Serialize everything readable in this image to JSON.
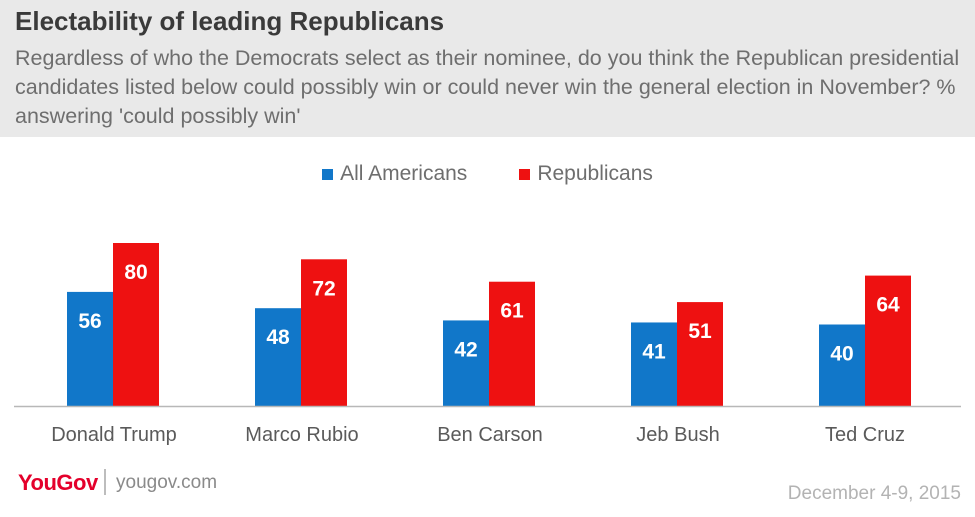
{
  "header": {
    "title": "Electability of leading Republicans",
    "subtitle": "Regardless of who the Democrats select as their nominee, do you think the Republican presidential candidates listed below could possibly win or could never win the general election in November? % answering 'could possibly win'"
  },
  "colors": {
    "all_americans": "#1177c9",
    "republicans": "#ee1111"
  },
  "chart_data": {
    "type": "bar",
    "categories": [
      "Donald Trump",
      "Marco Rubio",
      "Ben Carson",
      "Jeb Bush",
      "Ted Cruz"
    ],
    "series": [
      {
        "name": "All Americans",
        "values": [
          56,
          48,
          42,
          41,
          40
        ]
      },
      {
        "name": "Republicans",
        "values": [
          80,
          72,
          61,
          51,
          64
        ]
      }
    ],
    "ylim": [
      0,
      80
    ],
    "legend_position": "top",
    "grid": false
  },
  "footer": {
    "logo": "YouGov",
    "site": "yougov.com",
    "date": "December 4-9, 2015"
  }
}
